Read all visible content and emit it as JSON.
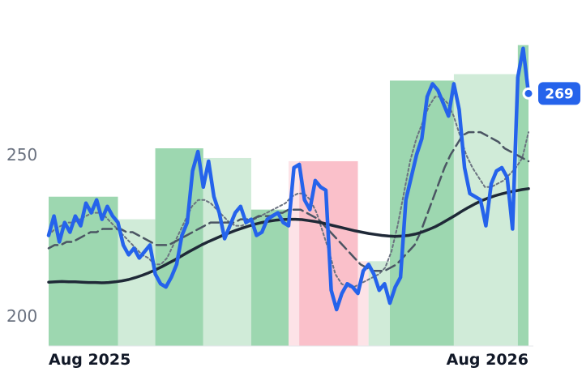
{
  "chart_data": {
    "type": "line",
    "x_ticks": [
      "Aug 2025",
      "Aug 2026"
    ],
    "y_ticks": [
      200,
      250
    ],
    "ylim": [
      190,
      287
    ],
    "last_value_label": "269",
    "grid": false,
    "legend": "none",
    "colors": {
      "price": "#2563eb",
      "sma_long": "#1f2937",
      "sma_mid": "#4b5563",
      "sma_short": "#6b7280",
      "bg_up_strong": "#9dd7b0",
      "bg_up_light": "#d0ebd8",
      "bg_down_strong": "#fac0ca",
      "bg_down_light": "#fde3e7"
    },
    "background_bands": [
      {
        "from": 0,
        "to": 13,
        "state": "up_strong"
      },
      {
        "from": 13,
        "to": 20,
        "state": "up_light"
      },
      {
        "from": 20,
        "to": 29,
        "state": "up_strong"
      },
      {
        "from": 29,
        "to": 38,
        "state": "up_light"
      },
      {
        "from": 38,
        "to": 45,
        "state": "up_strong"
      },
      {
        "from": 45,
        "to": 47,
        "state": "down_light"
      },
      {
        "from": 47,
        "to": 58,
        "state": "down_strong"
      },
      {
        "from": 58,
        "to": 60,
        "state": "down_light"
      },
      {
        "from": 60,
        "to": 64,
        "state": "up_light"
      },
      {
        "from": 64,
        "to": 76,
        "state": "up_strong"
      },
      {
        "from": 76,
        "to": 88,
        "state": "up_light"
      },
      {
        "from": 88,
        "to": 90,
        "state": "up_strong"
      }
    ],
    "series": [
      {
        "key": "price",
        "values": [
          225,
          231,
          223,
          229,
          226,
          231,
          228,
          235,
          232,
          236,
          230,
          234,
          231,
          229,
          222,
          219,
          221,
          218,
          220,
          222,
          213,
          210,
          209,
          212,
          216,
          225,
          229,
          245,
          251,
          240,
          248,
          237,
          232,
          224,
          228,
          232,
          234,
          229,
          230,
          225,
          226,
          230,
          231,
          232,
          229,
          228,
          246,
          247,
          236,
          233,
          242,
          240,
          239,
          208,
          202,
          207,
          210,
          209,
          207,
          214,
          216,
          213,
          208,
          210,
          204,
          209,
          212,
          236,
          243,
          250,
          255,
          268,
          272,
          270,
          266,
          262,
          272,
          264,
          246,
          238,
          237,
          236,
          228,
          241,
          245,
          246,
          243,
          227,
          274,
          283,
          269
        ]
      },
      {
        "key": "sma_long",
        "values": [
          210.5,
          210.6,
          210.7,
          210.6,
          210.6,
          210.5,
          210.4,
          210.4,
          210.3,
          210.4,
          210.6,
          210.9,
          211.3,
          211.9,
          212.6,
          213.4,
          214.3,
          215.3,
          216.4,
          217.5,
          218.7,
          219.9,
          221.0,
          222.1,
          223.1,
          224.0,
          224.9,
          225.7,
          226.5,
          227.2,
          227.9,
          228.5,
          229.0,
          229.4,
          229.7,
          229.9,
          230.0,
          230.0,
          229.9,
          229.6,
          229.3,
          228.9,
          228.4,
          227.9,
          227.4,
          226.9,
          226.4,
          226.0,
          225.6,
          225.3,
          225.0,
          224.8,
          224.7,
          224.8,
          225.0,
          225.4,
          226.0,
          226.8,
          227.7,
          228.8,
          230.0,
          231.2,
          232.5,
          233.7,
          234.8,
          235.8,
          236.6,
          237.3,
          237.9,
          238.4,
          238.8,
          239.2,
          239.5
        ]
      },
      {
        "key": "sma_mid",
        "values": [
          221,
          222,
          222,
          223,
          223,
          224,
          225,
          226,
          226,
          227,
          227,
          227,
          227,
          226,
          226,
          225,
          224,
          223,
          222,
          222,
          222,
          223,
          224,
          225,
          226,
          227,
          228,
          229,
          229,
          229,
          229,
          229,
          230,
          230,
          230,
          231,
          231,
          231,
          232,
          232,
          233,
          233,
          233,
          232,
          231,
          230,
          228,
          226,
          224,
          222,
          220,
          218,
          216,
          215,
          214,
          214,
          214,
          215,
          216,
          218,
          220,
          222,
          226,
          231,
          236,
          241,
          246,
          250,
          253,
          256,
          257,
          257,
          257,
          256,
          255,
          254,
          252,
          251,
          250,
          249,
          248
        ]
      },
      {
        "key": "sma_short",
        "values": [
          225,
          227,
          228,
          229,
          229,
          230,
          231,
          232,
          232,
          231,
          229,
          227,
          225,
          223,
          221,
          219,
          218,
          216,
          216,
          218,
          222,
          226,
          230,
          234,
          236,
          236,
          235,
          233,
          231,
          229,
          228,
          228,
          229,
          230,
          231,
          232,
          233,
          234,
          235,
          237,
          238,
          238,
          236,
          232,
          226,
          220,
          213,
          210,
          209,
          209,
          210,
          211,
          212,
          213,
          215,
          220,
          228,
          238,
          248,
          255,
          260,
          265,
          268,
          268,
          266,
          262,
          256,
          250,
          246,
          243,
          240,
          240,
          241,
          242,
          244,
          246,
          249,
          257
        ]
      }
    ]
  }
}
